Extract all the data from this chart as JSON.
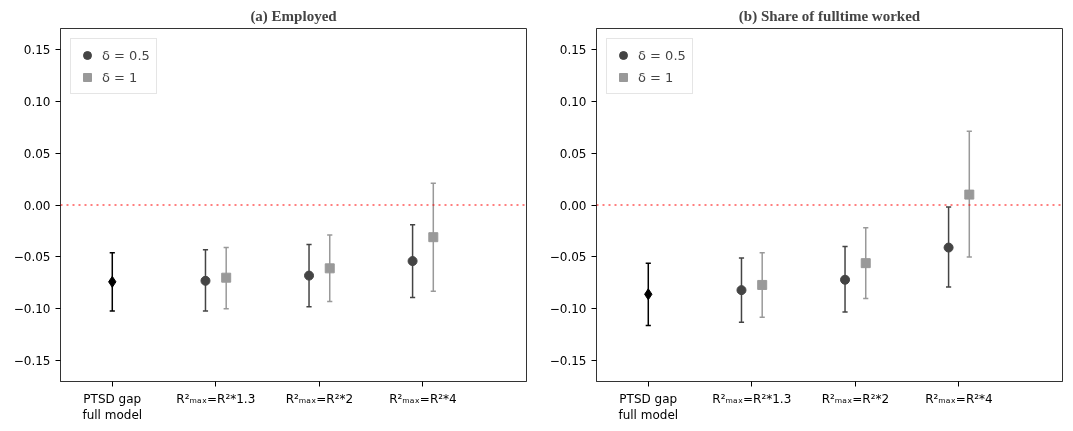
{
  "chart_data": [
    {
      "type": "scatter",
      "title": "(a) Employed",
      "categories": [
        "PTSD gap\nfull model",
        "R²ₘₐₓ=R²*1.3",
        "R²ₘₐₓ=R²*2",
        "R²ₘₐₓ=R²*4"
      ],
      "series": [
        {
          "color": "#000000",
          "marker": "diamond",
          "values": [
            -0.074,
            null,
            null,
            null
          ],
          "errors": [
            [
              -0.102,
              -0.046
            ],
            null,
            null,
            null
          ]
        },
        {
          "name": "δ = 0.5",
          "color": "#444444",
          "marker": "circle",
          "values": [
            null,
            -0.073,
            -0.068,
            -0.054
          ],
          "errors": [
            null,
            [
              -0.102,
              -0.043
            ],
            [
              -0.098,
              -0.038
            ],
            [
              -0.089,
              -0.019
            ]
          ]
        },
        {
          "name": "δ = 1",
          "color": "#999999",
          "marker": "square",
          "values": [
            null,
            -0.07,
            -0.061,
            -0.031
          ],
          "errors": [
            null,
            [
              -0.1,
              -0.041
            ],
            [
              -0.093,
              -0.029
            ],
            [
              -0.083,
              0.021
            ]
          ]
        }
      ],
      "ylim": [
        -0.17,
        0.17
      ],
      "yticks": [
        {
          "value": -0.15,
          "label": "−0.15"
        },
        {
          "value": -0.1,
          "label": "−0.10"
        },
        {
          "value": -0.05,
          "label": "−0.05"
        },
        {
          "value": 0,
          "label": "0.00"
        },
        {
          "value": 0.05,
          "label": "0.05"
        },
        {
          "value": 0.1,
          "label": "0.10"
        },
        {
          "value": 0.15,
          "label": "0.15"
        }
      ],
      "ref_lines": [
        {
          "axis": "y",
          "value": 0,
          "color": "#ff0000",
          "line_style": "dotted"
        }
      ],
      "grid": false,
      "legend": "top left"
    },
    {
      "type": "scatter",
      "title": "(b) Share of fulltime worked",
      "categories": [
        "PTSD gap\nfull model",
        "R²ₘₐₓ=R²*1.3",
        "R²ₘₐₓ=R²*2",
        "R²ₘₐₓ=R²*4"
      ],
      "series": [
        {
          "color": "#000000",
          "marker": "diamond",
          "values": [
            -0.086,
            null,
            null,
            null
          ],
          "errors": [
            [
              -0.116,
              -0.056
            ],
            null,
            null,
            null
          ]
        },
        {
          "name": "δ = 0.5",
          "color": "#444444",
          "marker": "circle",
          "values": [
            null,
            -0.082,
            -0.072,
            -0.041
          ],
          "errors": [
            null,
            [
              -0.113,
              -0.051
            ],
            [
              -0.103,
              -0.04
            ],
            [
              -0.079,
              -0.002
            ]
          ]
        },
        {
          "name": "δ = 1",
          "color": "#999999",
          "marker": "square",
          "values": [
            null,
            -0.077,
            -0.056,
            0.01
          ],
          "errors": [
            null,
            [
              -0.108,
              -0.046
            ],
            [
              -0.09,
              -0.022
            ],
            [
              -0.05,
              0.071
            ]
          ]
        }
      ],
      "ylim": [
        -0.17,
        0.17
      ],
      "yticks": [
        {
          "value": -0.15,
          "label": "−0.15"
        },
        {
          "value": -0.1,
          "label": "−0.10"
        },
        {
          "value": -0.05,
          "label": "−0.05"
        },
        {
          "value": 0,
          "label": "0.00"
        },
        {
          "value": 0.05,
          "label": "0.05"
        },
        {
          "value": 0.1,
          "label": "0.10"
        },
        {
          "value": 0.15,
          "label": "0.15"
        }
      ],
      "ref_lines": [
        {
          "axis": "y",
          "value": 0,
          "color": "#ff0000",
          "line_style": "dotted"
        }
      ],
      "grid": false,
      "legend": "top left"
    }
  ]
}
